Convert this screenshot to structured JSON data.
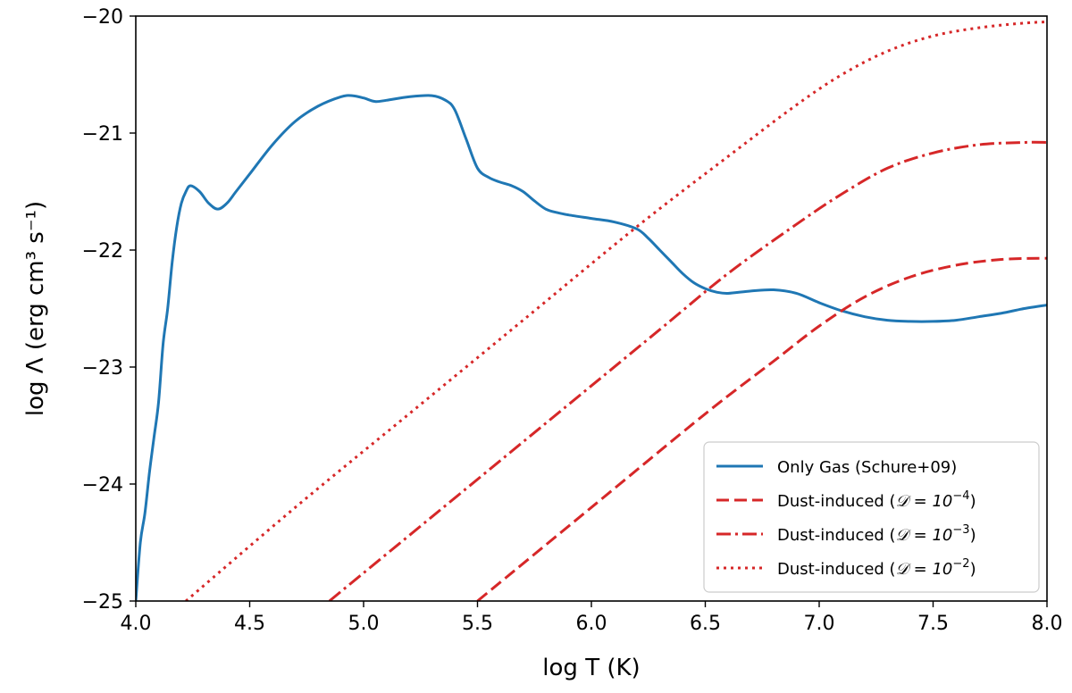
{
  "chart_data": {
    "type": "line",
    "title": "",
    "xlabel": "log T (K)",
    "ylabel": "log Λ (erg cm³ s⁻¹)",
    "xlim": [
      4.0,
      8.0
    ],
    "ylim": [
      -25,
      -20
    ],
    "xticks": [
      4.0,
      4.5,
      5.0,
      5.5,
      6.0,
      6.5,
      7.0,
      7.5,
      8.0
    ],
    "xtick_labels": [
      "4.0",
      "4.5",
      "5.0",
      "5.5",
      "6.0",
      "6.5",
      "7.0",
      "7.5",
      "8.0"
    ],
    "yticks": [
      -25,
      -24,
      -23,
      -22,
      -21,
      -20
    ],
    "ytick_labels": [
      "−25",
      "−24",
      "−23",
      "−22",
      "−21",
      "−20"
    ],
    "grid": false,
    "legend_position": "lower-right",
    "series": [
      {
        "name": "Only Gas (Schure+09)",
        "color": "#1f77b4",
        "style": "solid",
        "x": [
          4.0,
          4.02,
          4.04,
          4.06,
          4.08,
          4.1,
          4.12,
          4.14,
          4.16,
          4.18,
          4.2,
          4.22,
          4.24,
          4.28,
          4.32,
          4.36,
          4.4,
          4.44,
          4.5,
          4.6,
          4.7,
          4.8,
          4.9,
          4.95,
          5.0,
          5.05,
          5.1,
          5.2,
          5.3,
          5.36,
          5.4,
          5.45,
          5.5,
          5.55,
          5.6,
          5.65,
          5.7,
          5.75,
          5.8,
          5.85,
          5.9,
          6.0,
          6.1,
          6.2,
          6.25,
          6.3,
          6.35,
          6.4,
          6.45,
          6.5,
          6.55,
          6.6,
          6.7,
          6.8,
          6.9,
          7.0,
          7.1,
          7.2,
          7.3,
          7.4,
          7.5,
          7.6,
          7.7,
          7.8,
          7.9,
          8.0
        ],
        "y": [
          -25.0,
          -24.5,
          -24.25,
          -23.9,
          -23.6,
          -23.3,
          -22.8,
          -22.5,
          -22.1,
          -21.8,
          -21.6,
          -21.5,
          -21.45,
          -21.5,
          -21.6,
          -21.65,
          -21.6,
          -21.5,
          -21.35,
          -21.1,
          -20.9,
          -20.77,
          -20.69,
          -20.68,
          -20.7,
          -20.73,
          -20.72,
          -20.69,
          -20.68,
          -20.72,
          -20.8,
          -21.05,
          -21.3,
          -21.38,
          -21.42,
          -21.45,
          -21.5,
          -21.58,
          -21.65,
          -21.68,
          -21.7,
          -21.73,
          -21.76,
          -21.82,
          -21.9,
          -22.0,
          -22.1,
          -22.2,
          -22.28,
          -22.33,
          -22.36,
          -22.37,
          -22.35,
          -22.34,
          -22.37,
          -22.45,
          -22.52,
          -22.57,
          -22.6,
          -22.61,
          -22.61,
          -22.6,
          -22.57,
          -22.54,
          -22.5,
          -22.47
        ]
      },
      {
        "name": "Dust-induced (D = 10⁻⁴)",
        "legend_prefix": "Dust-induced (",
        "legend_symbol": "𝒟 = 10",
        "legend_exponent": "−4",
        "legend_suffix": ")",
        "color": "#d62728",
        "style": "dashed",
        "x": [
          5.5,
          6.0,
          6.5,
          6.8,
          7.0,
          7.2,
          7.4,
          7.6,
          7.8,
          8.0
        ],
        "y": [
          -25.0,
          -24.2,
          -23.4,
          -22.95,
          -22.65,
          -22.4,
          -22.23,
          -22.13,
          -22.08,
          -22.07
        ]
      },
      {
        "name": "Dust-induced (D = 10⁻³)",
        "legend_prefix": "Dust-induced (",
        "legend_symbol": "𝒟 = 10",
        "legend_exponent": "−3",
        "legend_suffix": ")",
        "color": "#d62728",
        "style": "dashdot",
        "x": [
          4.85,
          5.3,
          5.8,
          6.3,
          6.6,
          6.9,
          7.1,
          7.3,
          7.5,
          7.7,
          7.9,
          8.0
        ],
        "y": [
          -25.0,
          -24.28,
          -23.48,
          -22.68,
          -22.2,
          -21.78,
          -21.52,
          -21.3,
          -21.17,
          -21.1,
          -21.08,
          -21.08
        ]
      },
      {
        "name": "Dust-induced (D = 10⁻²)",
        "legend_prefix": "Dust-induced (",
        "legend_symbol": "𝒟 = 10",
        "legend_exponent": "−2",
        "legend_suffix": ")",
        "color": "#d62728",
        "style": "dotted",
        "x": [
          4.22,
          4.7,
          5.2,
          5.7,
          6.2,
          6.6,
          6.9,
          7.1,
          7.3,
          7.5,
          7.7,
          7.9,
          8.0
        ],
        "y": [
          -25.0,
          -24.2,
          -23.4,
          -22.6,
          -21.8,
          -21.2,
          -20.76,
          -20.5,
          -20.3,
          -20.17,
          -20.1,
          -20.06,
          -20.05
        ]
      }
    ]
  }
}
